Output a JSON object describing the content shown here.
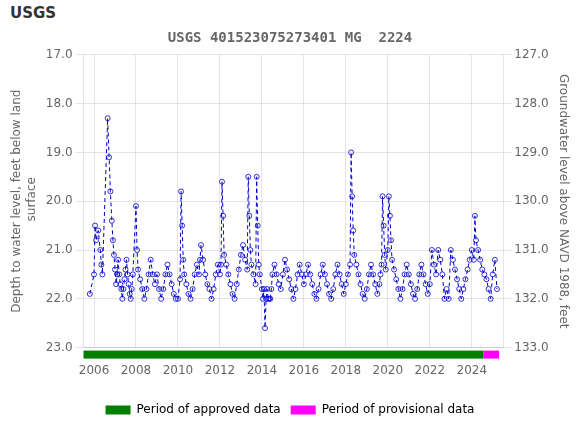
{
  "chart_data": {
    "type": "line",
    "title": "USGS 401523075273401 MG  2224",
    "annotations": [
      {
        "text": "USGS"
      }
    ],
    "ylabel": "Depth to water level, feet below land\n surface",
    "y2label": "Groundwater level above NAVD 1988, feet",
    "xlim": [
      2005.5,
      2025.5
    ],
    "xticks": [
      2006,
      2008,
      2010,
      2012,
      2014,
      2016,
      2018,
      2020,
      2022,
      2024
    ],
    "ylim": [
      23.0,
      17.0
    ],
    "yticks": [
      {
        "value": 17.0,
        "label": "17.0"
      },
      {
        "value": 18.0,
        "label": "18.0"
      },
      {
        "value": 19.0,
        "label": "19.0"
      },
      {
        "value": 20.0,
        "label": "20.0"
      },
      {
        "value": 21.0,
        "label": "21.0"
      },
      {
        "value": 22.0,
        "label": "22.0"
      },
      {
        "value": 23.0,
        "label": "23.0"
      }
    ],
    "y2lim": [
      133.0,
      127.0
    ],
    "y2ticks": [
      {
        "value": 133.0,
        "label": "133.0"
      },
      {
        "value": 132.0,
        "label": "132.0"
      },
      {
        "value": 131.0,
        "label": "131.0"
      },
      {
        "value": 130.0,
        "label": "130.0"
      },
      {
        "value": 129.0,
        "label": "129.0"
      },
      {
        "value": 128.0,
        "label": "128.0"
      },
      {
        "value": 127.0,
        "label": "127.0"
      }
    ],
    "grid": true,
    "legend": "bottom",
    "x": [
      2005.8,
      2006.0,
      2006.05,
      2006.1,
      2006.2,
      2006.3,
      2006.35,
      2006.4,
      2006.65,
      2006.72,
      2006.78,
      2006.85,
      2006.9,
      2006.95,
      2007.0,
      2007.05,
      2007.1,
      2007.15,
      2007.2,
      2007.25,
      2007.3,
      2007.35,
      2007.4,
      2007.45,
      2007.5,
      2007.55,
      2007.6,
      2007.65,
      2007.7,
      2007.75,
      2007.8,
      2007.85,
      2008.0,
      2008.05,
      2008.1,
      2008.2,
      2008.3,
      2008.4,
      2008.5,
      2008.6,
      2008.7,
      2008.8,
      2008.9,
      2009.0,
      2009.1,
      2009.2,
      2009.3,
      2009.4,
      2009.5,
      2009.6,
      2009.7,
      2009.8,
      2009.9,
      2010.0,
      2010.1,
      2010.15,
      2010.2,
      2010.25,
      2010.3,
      2010.4,
      2010.5,
      2010.6,
      2010.7,
      2010.8,
      2010.9,
      2011.0,
      2011.05,
      2011.1,
      2011.2,
      2011.3,
      2011.4,
      2011.5,
      2011.6,
      2011.7,
      2011.8,
      2011.9,
      2012.0,
      2012.05,
      2012.1,
      2012.15,
      2012.2,
      2012.3,
      2012.4,
      2012.5,
      2012.6,
      2012.7,
      2012.8,
      2012.9,
      2013.0,
      2013.1,
      2013.2,
      2013.3,
      2013.35,
      2013.4,
      2013.45,
      2013.5,
      2013.6,
      2013.7,
      2013.75,
      2013.8,
      2013.85,
      2013.9,
      2014.0,
      2014.05,
      2014.1,
      2014.15,
      2014.2,
      2014.25,
      2014.3,
      2014.35,
      2014.4,
      2014.45,
      2014.5,
      2014.6,
      2014.7,
      2014.8,
      2014.9,
      2015.0,
      2015.1,
      2015.2,
      2015.3,
      2015.4,
      2015.5,
      2015.6,
      2015.7,
      2015.8,
      2015.9,
      2016.0,
      2016.1,
      2016.2,
      2016.3,
      2016.4,
      2016.5,
      2016.6,
      2016.7,
      2016.8,
      2016.9,
      2017.0,
      2017.1,
      2017.2,
      2017.3,
      2017.4,
      2017.5,
      2017.6,
      2017.7,
      2017.8,
      2017.9,
      2018.0,
      2018.1,
      2018.2,
      2018.25,
      2018.3,
      2018.35,
      2018.4,
      2018.5,
      2018.6,
      2018.7,
      2018.8,
      2018.9,
      2019.0,
      2019.1,
      2019.2,
      2019.3,
      2019.4,
      2019.5,
      2019.6,
      2019.65,
      2019.7,
      2019.75,
      2019.8,
      2019.85,
      2019.9,
      2020.0,
      2020.05,
      2020.1,
      2020.15,
      2020.2,
      2020.3,
      2020.4,
      2020.5,
      2020.6,
      2020.7,
      2020.8,
      2020.9,
      2021.0,
      2021.1,
      2021.2,
      2021.3,
      2021.4,
      2021.5,
      2021.6,
      2021.7,
      2021.8,
      2021.9,
      2022.0,
      2022.1,
      2022.2,
      2022.3,
      2022.4,
      2022.5,
      2022.6,
      2022.7,
      2022.8,
      2022.9,
      2023.0,
      2023.1,
      2023.2,
      2023.3,
      2023.4,
      2023.5,
      2023.6,
      2023.7,
      2023.8,
      2023.9,
      2024.0,
      2024.1,
      2024.15,
      2024.2,
      2024.3,
      2024.4,
      2024.5,
      2024.6,
      2024.7,
      2024.8,
      2024.9,
      2025.0,
      2025.1,
      2025.2
    ],
    "series": [
      {
        "color": "#0000cc",
        "line_style": "dashed",
        "marker": "circle",
        "values": [
          21.9,
          21.5,
          20.5,
          20.8,
          20.6,
          21.0,
          21.3,
          21.5,
          18.3,
          19.1,
          19.8,
          20.4,
          20.8,
          21.1,
          21.4,
          21.7,
          21.5,
          21.2,
          21.5,
          21.7,
          21.8,
          22.0,
          21.8,
          21.6,
          21.4,
          21.2,
          21.5,
          21.7,
          21.9,
          22.0,
          21.8,
          21.5,
          20.1,
          21.0,
          21.4,
          21.6,
          21.8,
          22.0,
          21.8,
          21.5,
          21.2,
          21.5,
          21.7,
          21.5,
          21.8,
          22.0,
          21.8,
          21.5,
          21.3,
          21.5,
          21.7,
          21.9,
          22.0,
          22.0,
          21.6,
          19.8,
          20.5,
          21.2,
          21.5,
          21.7,
          21.9,
          22.0,
          21.8,
          21.5,
          21.3,
          21.5,
          21.2,
          20.9,
          21.2,
          21.5,
          21.7,
          21.8,
          22.0,
          21.8,
          21.5,
          21.3,
          21.5,
          21.3,
          19.6,
          20.3,
          21.1,
          21.3,
          21.5,
          21.7,
          21.9,
          22.0,
          21.7,
          21.4,
          21.1,
          20.9,
          21.2,
          21.4,
          19.5,
          20.3,
          21.0,
          21.3,
          21.5,
          21.7,
          19.5,
          20.5,
          21.3,
          21.5,
          21.8,
          22.0,
          21.8,
          22.6,
          22.0,
          21.8,
          22.0,
          22.0,
          22.0,
          21.8,
          21.5,
          21.3,
          21.5,
          21.7,
          21.8,
          21.5,
          21.2,
          21.4,
          21.6,
          21.8,
          22.0,
          21.8,
          21.5,
          21.3,
          21.5,
          21.7,
          21.5,
          21.3,
          21.5,
          21.7,
          21.9,
          22.0,
          21.8,
          21.5,
          21.3,
          21.5,
          21.7,
          21.9,
          22.0,
          21.8,
          21.5,
          21.3,
          21.5,
          21.7,
          21.9,
          21.7,
          21.5,
          21.3,
          19.0,
          19.9,
          20.6,
          21.1,
          21.3,
          21.5,
          21.7,
          21.9,
          22.0,
          21.8,
          21.5,
          21.3,
          21.5,
          21.7,
          21.9,
          21.7,
          21.5,
          21.3,
          19.9,
          20.5,
          21.1,
          21.4,
          21.0,
          19.9,
          20.3,
          20.8,
          21.2,
          21.4,
          21.6,
          21.8,
          22.0,
          21.8,
          21.5,
          21.3,
          21.5,
          21.7,
          21.9,
          22.0,
          21.8,
          21.5,
          21.3,
          21.5,
          21.7,
          21.9,
          21.7,
          21.0,
          21.3,
          21.5,
          21.0,
          21.2,
          21.5,
          22.0,
          21.8,
          22.0,
          21.0,
          21.2,
          21.4,
          21.6,
          21.8,
          22.0,
          21.8,
          21.6,
          21.4,
          21.2,
          21.0,
          21.2,
          20.3,
          20.8,
          21.0,
          21.2,
          21.4,
          21.5,
          21.6,
          21.8,
          22.0,
          21.5,
          21.2,
          21.8
        ]
      }
    ],
    "periods": [
      {
        "name": "Period of approved data",
        "start": 2005.5,
        "end": 2024.55,
        "color": "#008000"
      },
      {
        "name": "Period of provisional data",
        "start": 2024.55,
        "end": 2025.3,
        "color": "#ff00ff"
      }
    ]
  }
}
